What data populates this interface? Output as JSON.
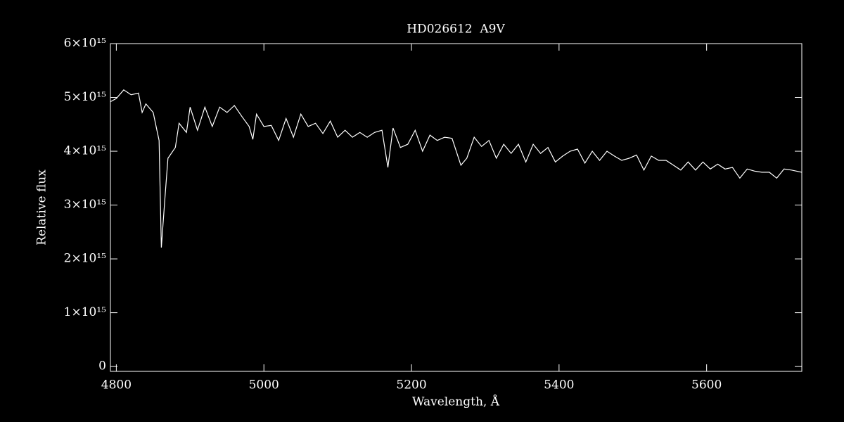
{
  "chart_data": {
    "type": "line",
    "title": "HD026612  A9V",
    "x_label": "Wavelength, Å",
    "y_label": "Relative flux",
    "xlim": [
      4792,
      5729
    ],
    "ylim": [
      -90000000000000.0,
      6000000000000000.0
    ],
    "xticks": [
      4800,
      5000,
      5200,
      5400,
      5600
    ],
    "yticks": [
      0,
      {
        "value": 1000000000000000.0,
        "label": "1×10¹⁵"
      },
      {
        "value": 2000000000000000.0,
        "label": "2×10¹⁵"
      },
      {
        "value": 3000000000000000.0,
        "label": "3×10¹⁵"
      },
      {
        "value": 4000000000000000.0,
        "label": "4×10¹⁵"
      },
      {
        "value": 5000000000000000.0,
        "label": "5×10¹⁵"
      },
      {
        "value": 6000000000000000.0,
        "label": "6×10¹⁵"
      }
    ],
    "color": "#ffffff",
    "series": [
      {
        "name": "HD026612",
        "color": "#ffffff",
        "x": [
          4792,
          4800,
          4810,
          4820,
          4830,
          4835,
          4840,
          4850,
          4855,
          4858,
          4861,
          4866,
          4870,
          4880,
          4885,
          4895,
          4900,
          4910,
          4920,
          4930,
          4940,
          4950,
          4960,
          4970,
          4980,
          4985,
          4990,
          5000,
          5010,
          5020,
          5030,
          5040,
          5050,
          5060,
          5070,
          5080,
          5090,
          5100,
          5110,
          5120,
          5130,
          5140,
          5150,
          5160,
          5168,
          5175,
          5185,
          5195,
          5205,
          5215,
          5225,
          5235,
          5245,
          5255,
          5267,
          5275,
          5285,
          5295,
          5305,
          5315,
          5325,
          5335,
          5345,
          5355,
          5365,
          5375,
          5385,
          5395,
          5405,
          5415,
          5425,
          5435,
          5445,
          5455,
          5465,
          5475,
          5485,
          5495,
          5505,
          5515,
          5525,
          5535,
          5545,
          5555,
          5565,
          5575,
          5585,
          5595,
          5605,
          5615,
          5625,
          5635,
          5645,
          5655,
          5665,
          5675,
          5685,
          5695,
          5705,
          5715,
          5729
        ],
        "values": [
          4920000000000000.0,
          4980000000000000.0,
          5140000000000000.0,
          5050000000000000.0,
          5080000000000000.0,
          4720000000000000.0,
          4880000000000000.0,
          4720000000000000.0,
          4390000000000000.0,
          4200000000000000.0,
          2210000000000000.0,
          3150000000000000.0,
          3870000000000000.0,
          4070000000000000.0,
          4520000000000000.0,
          4350000000000000.0,
          4820000000000000.0,
          4390000000000000.0,
          4820000000000000.0,
          4460000000000000.0,
          4820000000000000.0,
          4720000000000000.0,
          4850000000000000.0,
          4650000000000000.0,
          4460000000000000.0,
          4220000000000000.0,
          4690000000000000.0,
          4460000000000000.0,
          4480000000000000.0,
          4200000000000000.0,
          4610000000000000.0,
          4260000000000000.0,
          4690000000000000.0,
          4460000000000000.0,
          4520000000000000.0,
          4330000000000000.0,
          4560000000000000.0,
          4260000000000000.0,
          4390000000000000.0,
          4260000000000000.0,
          4350000000000000.0,
          4260000000000000.0,
          4350000000000000.0,
          4390000000000000.0,
          3700000000000000.0,
          4430000000000000.0,
          4070000000000000.0,
          4130000000000000.0,
          4390000000000000.0,
          4000000000000000.0,
          4300000000000000.0,
          4200000000000000.0,
          4260000000000000.0,
          4240000000000000.0,
          3740000000000000.0,
          3870000000000000.0,
          4260000000000000.0,
          4090000000000000.0,
          4200000000000000.0,
          3870000000000000.0,
          4130000000000000.0,
          3960000000000000.0,
          4130000000000000.0,
          3800000000000000.0,
          4130000000000000.0,
          3960000000000000.0,
          4070000000000000.0,
          3800000000000000.0,
          3910000000000000.0,
          4000000000000000.0,
          4040000000000000.0,
          3780000000000000.0,
          4000000000000000.0,
          3830000000000000.0,
          4000000000000000.0,
          3910000000000000.0,
          3830000000000000.0,
          3870000000000000.0,
          3930000000000000.0,
          3650000000000000.0,
          3910000000000000.0,
          3830000000000000.0,
          3830000000000000.0,
          3740000000000000.0,
          3650000000000000.0,
          3800000000000000.0,
          3650000000000000.0,
          3800000000000000.0,
          3670000000000000.0,
          3760000000000000.0,
          3670000000000000.0,
          3700000000000000.0,
          3500000000000000.0,
          3670000000000000.0,
          3630000000000000.0,
          3610000000000000.0,
          3610000000000000.0,
          3500000000000000.0,
          3670000000000000.0,
          3650000000000000.0,
          3610000000000000.0
        ]
      }
    ]
  }
}
